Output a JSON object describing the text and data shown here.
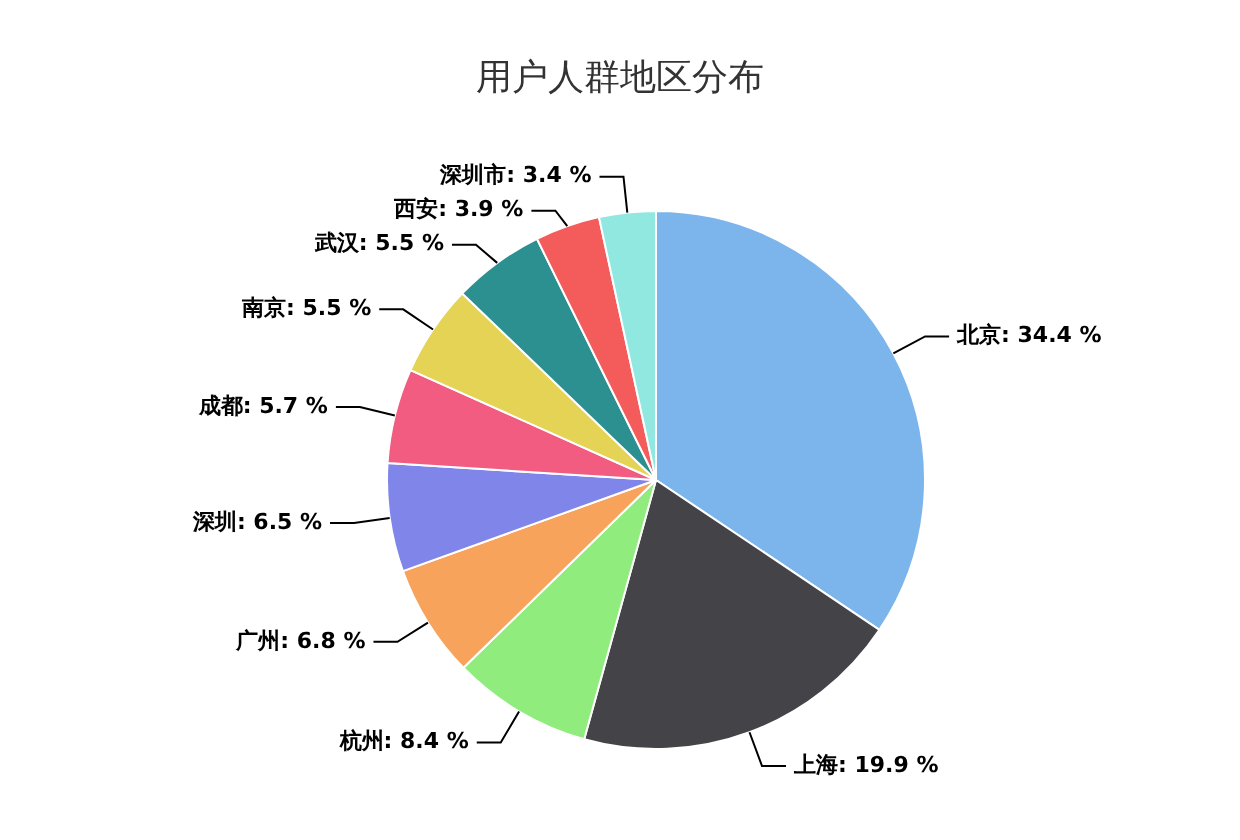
{
  "chart_data": {
    "type": "pie",
    "title": "用户人群地区分布",
    "categories": [
      "北京",
      "上海",
      "杭州",
      "广州",
      "深圳",
      "成都",
      "南京",
      "武汉",
      "西安",
      "深圳市"
    ],
    "values": [
      34.4,
      19.9,
      8.4,
      6.8,
      6.5,
      5.7,
      5.5,
      5.5,
      3.9,
      3.4
    ],
    "value_labels": [
      "34.4 %",
      "19.9 %",
      "8.4 %",
      "6.8 %",
      "6.5 %",
      "5.7 %",
      "5.5 %",
      "5.5 %",
      "3.9 %",
      "3.4 %"
    ],
    "colors": [
      "#7cb5ec",
      "#434348",
      "#90ed7d",
      "#f7a35c",
      "#8085e9",
      "#f15c80",
      "#e4d354",
      "#2b908f",
      "#f45b5b",
      "#91e8e1"
    ],
    "legend": false
  }
}
